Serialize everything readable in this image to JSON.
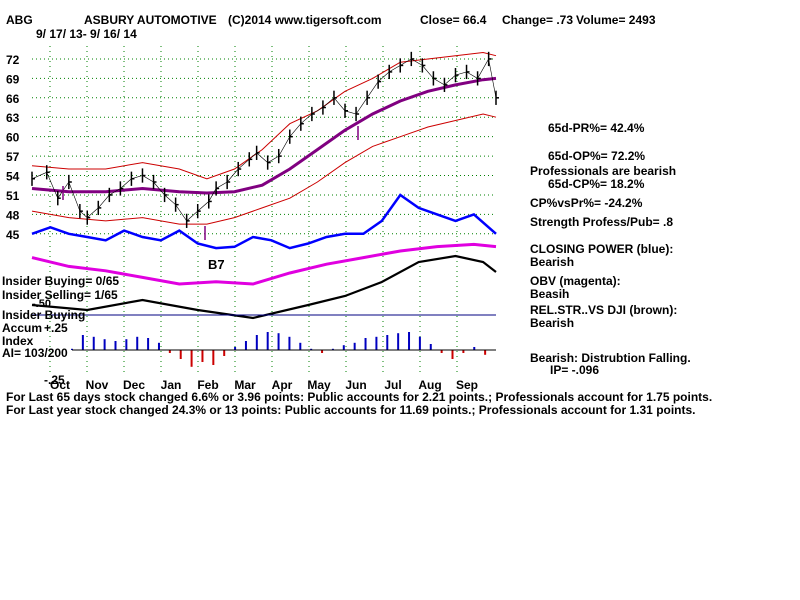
{
  "header": {
    "symbol": "ABG",
    "company": "ASBURY AUTOMOTIVE",
    "source": "(C)2014 www.tigersoft.com",
    "close": "Close=  66.4",
    "change": "Change= .73",
    "volume": "Volume= 2493",
    "daterange": "9/ 17/ 13- 9/ 16/ 14"
  },
  "colors": {
    "closing_power": "#0000ff",
    "obv": "#e000e0",
    "relstr": "#000000",
    "price": "#000000",
    "bands": "#cc0000",
    "ma": "#800080",
    "accum_pos": "#0000c0",
    "accum_neg": "#cc0000",
    "grid": "#008000"
  },
  "left_labels": {
    "insider_buying": "Insider Buying= 0/65",
    "insider_selling": "Insider Selling= 1/65",
    "insider_buying2": "Insider Buying",
    "accum": "Accum",
    "index": "Index",
    "ai": "AI= 103/200",
    "plus25": "+.25",
    "minus50": "-.50",
    "minus25": "-.25",
    "b7": "B7"
  },
  "right_panel": {
    "pr": "65d-PR%= 42.4%",
    "op": "65d-OP%= 72.2%",
    "prof_bearish": "Professionals are bearish",
    "cp": "65d-CP%= 18.2%",
    "cpvspr": "CP%vsPr%= -24.2%",
    "strength": "Strength Profess/Pub= .8",
    "closing_power": "CLOSING POWER (blue):",
    "closing_power_v": "Bearish",
    "obv": "OBV (magenta):",
    "obv_v": "Beasih",
    "relstr": "REL.STR..VS DJI (brown):",
    "relstr_v": "Bearish",
    "bearish_dist": "Bearish: Distrubtion Falling.",
    "ip": "IP= -.096"
  },
  "footer": {
    "line1": "For Last 65 days stock changed  6.6% or  3.96 points:  Public accounts for  2.21 points.;  Professionals account for  1.75 points.",
    "line2": "For Last year stock changed  24.3% or  13 points:  Public accounts for  11.69 points.;  Professionals account for  1.31 points."
  },
  "chart_data": {
    "type": "line",
    "title": "ASBURY AUTOMOTIVE",
    "y_ticks": [
      72,
      69,
      66,
      63,
      60,
      57,
      54,
      51,
      48,
      45
    ],
    "ylim": [
      42.5,
      74
    ],
    "x_labels": [
      "Oct",
      "Nov",
      "Dec",
      "Jan",
      "Feb",
      "Mar",
      "Apr",
      "May",
      "Jun",
      "Jul",
      "Aug",
      "Sep"
    ],
    "grid": true,
    "series": [
      {
        "name": "price",
        "x": [
          0,
          8,
          14,
          20,
          26,
          30,
          36,
          42,
          48,
          54,
          60,
          66,
          72,
          78,
          84,
          90,
          96,
          100,
          106,
          112,
          118,
          122,
          128,
          134,
          140,
          146,
          152,
          158,
          164,
          170,
          176,
          182,
          188,
          194,
          200,
          206,
          212,
          218,
          224,
          230,
          236,
          242,
          248,
          252
        ],
        "values": [
          53.5,
          54.5,
          50.5,
          53,
          48.5,
          47.5,
          49,
          51,
          52,
          53.5,
          54,
          53,
          51,
          49.5,
          47,
          48.5,
          50,
          52,
          53,
          55,
          56.5,
          57.5,
          56,
          57,
          60,
          62,
          63.5,
          64.5,
          66,
          64,
          63.5,
          66,
          68.5,
          70,
          71,
          72,
          71,
          69,
          68,
          69.5,
          70,
          69,
          72,
          66
        ]
      },
      {
        "name": "ma",
        "x": [
          0,
          20,
          40,
          60,
          80,
          95,
          110,
          125,
          140,
          155,
          170,
          185,
          200,
          215,
          230,
          245,
          252
        ],
        "values": [
          52,
          51.5,
          51.5,
          52,
          51.5,
          51.3,
          51.5,
          52.5,
          55,
          58,
          61,
          63.5,
          65.5,
          67,
          68,
          68.8,
          69
        ]
      },
      {
        "name": "upper_band",
        "x": [
          0,
          20,
          40,
          60,
          80,
          95,
          110,
          125,
          140,
          155,
          170,
          185,
          200,
          215,
          230,
          245,
          252
        ],
        "values": [
          55.5,
          55,
          55,
          56,
          55,
          53.5,
          55,
          58,
          62,
          64,
          67,
          69,
          71.5,
          72,
          72.5,
          73,
          72.5
        ]
      },
      {
        "name": "lower_band",
        "x": [
          0,
          20,
          40,
          60,
          80,
          95,
          110,
          125,
          140,
          155,
          170,
          185,
          200,
          215,
          230,
          245,
          252
        ],
        "values": [
          48.5,
          47.5,
          47,
          47.5,
          46.5,
          46.5,
          47.5,
          49,
          50.5,
          53,
          56,
          58.5,
          60,
          61.5,
          62.5,
          63.5,
          63
        ]
      },
      {
        "name": "closing_power",
        "x": [
          0,
          10,
          20,
          30,
          40,
          50,
          60,
          70,
          80,
          90,
          100,
          110,
          120,
          130,
          140,
          150,
          160,
          170,
          180,
          190,
          200,
          210,
          220,
          230,
          240,
          252
        ],
        "values": [
          45,
          46,
          45,
          44.5,
          44,
          45.5,
          44.5,
          44,
          45.5,
          43.5,
          42.8,
          43,
          44.5,
          44,
          42.8,
          43.5,
          44.5,
          45,
          45,
          47,
          51,
          49,
          48,
          47,
          48,
          45
        ]
      },
      {
        "name": "obv",
        "x": [
          0,
          20,
          40,
          60,
          80,
          100,
          120,
          140,
          160,
          180,
          200,
          220,
          240,
          252
        ],
        "values": [
          0.42,
          0.38,
          0.36,
          0.33,
          0.3,
          0.31,
          0.3,
          0.35,
          0.39,
          0.42,
          0.45,
          0.47,
          0.48,
          0.47
        ]
      }
    ],
    "accum_index": [
      0.02,
      0.25,
      0.22,
      0.18,
      0.15,
      0.18,
      0.22,
      0.2,
      0.12,
      -0.05,
      -0.15,
      -0.28,
      -0.2,
      -0.25,
      -0.1,
      0.05,
      0.15,
      0.25,
      0.3,
      0.28,
      0.22,
      0.12,
      0.02,
      -0.05,
      0.02,
      0.08,
      0.12,
      0.2,
      0.22,
      0.25,
      0.28,
      0.3,
      0.22,
      0.1,
      -0.05,
      -0.15,
      -0.05,
      0.05,
      -0.08
    ]
  }
}
